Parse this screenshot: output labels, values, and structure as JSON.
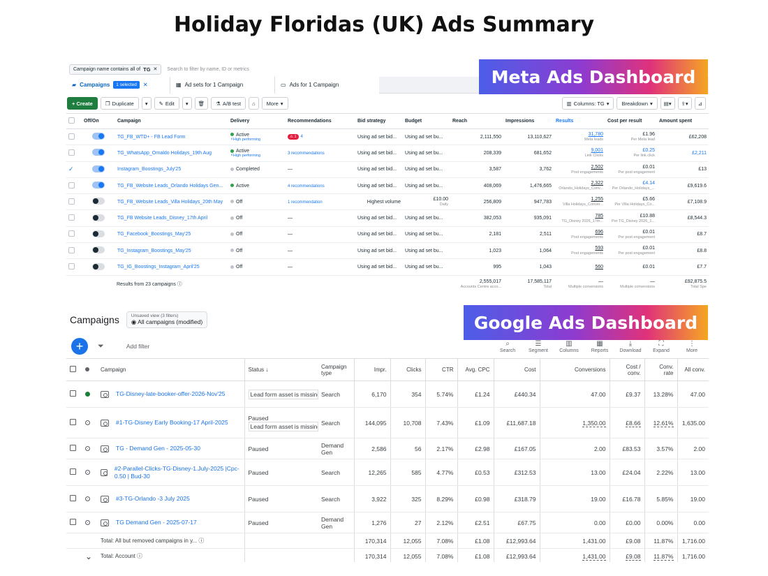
{
  "page_title": "Holiday Floridas (UK) Ads Summary",
  "labels": {
    "meta": "Meta Ads Dashboard",
    "google": "Google Ads Dashboard"
  },
  "meta": {
    "filter": {
      "chip_text": "Campaign name contains all of",
      "chip_value": "TG",
      "hint": "Search to filter by name, ID or metrics"
    },
    "tabs": {
      "campaigns": "Campaigns",
      "selected": "1 selected",
      "adsets": "Ad sets for 1 Campaign",
      "ads": "Ads for 1 Campaign"
    },
    "toolbar": {
      "create": "+ Create",
      "duplicate": "Duplicate",
      "edit": "Edit",
      "abtest": "A/B test",
      "more": "More",
      "columns": "Columns: TG",
      "breakdown": "Breakdown"
    },
    "columns": [
      "Off/On",
      "Campaign",
      "Delivery",
      "Recommendations",
      "Bid strategy",
      "Budget",
      "Reach",
      "Impressions",
      "Results",
      "Cost per result",
      "Amount spent"
    ],
    "rows": [
      {
        "checked": false,
        "on": true,
        "name": "TG_FB_WTD+ - FB Lead Form",
        "delivery": "Active",
        "delivery_sub": "High performing",
        "rec": "4",
        "rec_badge": "1",
        "bid": "Using ad set bid...",
        "budget": "Using ad set bu...",
        "budget_sub": "",
        "reach": "2,111,550",
        "impr": "13,110,627",
        "results": "31,780",
        "results_sub": "Meta leads",
        "cpr": "£1.96",
        "cpr_sub": "Per Meta lead",
        "spent": "£62,208"
      },
      {
        "checked": false,
        "on": true,
        "name": "TG_WhatsApp_Ornaldo Holidays_19th Aug",
        "delivery": "Active",
        "delivery_sub": "High performing",
        "rec": "3 recommendations",
        "rec_badge": "",
        "bid": "Using ad set bid...",
        "budget": "Using ad set bu...",
        "budget_sub": "",
        "reach": "208,339",
        "impr": "681,652",
        "results": "9,001",
        "results_sub": "Link Clicks",
        "cpr": "£0.25",
        "cpr_sub": "Per link click",
        "spent": "£2,211"
      },
      {
        "checked": true,
        "on": true,
        "name": "Instagram_Boostings_July'25",
        "delivery": "Completed",
        "delivery_sub": "",
        "rec": "—",
        "rec_badge": "",
        "bid": "Using ad set bid...",
        "budget": "Using ad set bu...",
        "budget_sub": "",
        "reach": "3,587",
        "impr": "3,762",
        "results": "2,502",
        "results_sub": "Post engagements",
        "cpr": "£0.01",
        "cpr_sub": "Per post engagement",
        "spent": "£13"
      },
      {
        "checked": false,
        "on": true,
        "name": "TG_FB_Website Leads_Orlando Holidays Gen...",
        "delivery": "Active",
        "delivery_sub": "",
        "rec": "4 recommendations",
        "rec_badge": "",
        "bid": "Using ad set bid...",
        "budget": "Using ad set bu...",
        "budget_sub": "",
        "reach": "408,069",
        "impr": "1,476,665",
        "results": "2,322",
        "results_sub": "Orlando_Holidays_Conv...",
        "cpr": "£4.14",
        "cpr_sub": "Per Orlando_Holidays_...",
        "spent": "£9,619.6"
      },
      {
        "checked": false,
        "on": false,
        "name": "TG_FB_Website Leads_Villa Holidays_20th May",
        "delivery": "Off",
        "delivery_sub": "",
        "rec": "1 recommendation",
        "rec_badge": "",
        "bid": "Highest volume",
        "budget": "£10.00",
        "budget_sub": "Daily",
        "reach": "256,809",
        "impr": "947,783",
        "results": "1,255",
        "results_sub": "Villa Holidays_Conver...",
        "cpr": "£5.66",
        "cpr_sub": "Per Villa Holidays_Co...",
        "spent": "£7,108.9"
      },
      {
        "checked": false,
        "on": false,
        "name": "TG_FB Website Leads_Disney_17th April",
        "delivery": "Off",
        "delivery_sub": "",
        "rec": "—",
        "rec_badge": "",
        "bid": "Using ad set bid...",
        "budget": "Using ad set bu...",
        "budget_sub": "",
        "reach": "382,053",
        "impr": "935,091",
        "results": "785",
        "results_sub": "TG_Disney 2026_17th...",
        "cpr": "£10.88",
        "cpr_sub": "Per TG_Disney 2026_1...",
        "spent": "£8,544.3"
      },
      {
        "checked": false,
        "on": false,
        "name": "TG_Facebook_Boostings_May'25",
        "delivery": "Off",
        "delivery_sub": "",
        "rec": "—",
        "rec_badge": "",
        "bid": "Using ad set bid...",
        "budget": "Using ad set bu...",
        "budget_sub": "",
        "reach": "2,181",
        "impr": "2,511",
        "results": "696",
        "results_sub": "Post engagements",
        "cpr": "£0.01",
        "cpr_sub": "Per post engagement",
        "spent": "£8.7"
      },
      {
        "checked": false,
        "on": false,
        "name": "TG_Instagram_Boostings_May'25",
        "delivery": "Off",
        "delivery_sub": "",
        "rec": "—",
        "rec_badge": "",
        "bid": "Using ad set bid...",
        "budget": "Using ad set bu...",
        "budget_sub": "",
        "reach": "1,023",
        "impr": "1,064",
        "results": "593",
        "results_sub": "Post engagements",
        "cpr": "£0.01",
        "cpr_sub": "Per post engagement",
        "spent": "£8.8"
      },
      {
        "checked": false,
        "on": false,
        "name": "TG_IG_Boostings_Instagram_April'25",
        "delivery": "Off",
        "delivery_sub": "",
        "rec": "—",
        "rec_badge": "",
        "bid": "Using ad set bid...",
        "budget": "Using ad set bu...",
        "budget_sub": "",
        "reach": "995",
        "impr": "1,043",
        "results": "560",
        "results_sub": "",
        "cpr": "£0.01",
        "cpr_sub": "",
        "spent": "£7.7"
      }
    ],
    "footer": {
      "label": "Results from 23 campaigns",
      "reach": "2,555,017",
      "reach_sub": "Accounts Centre acco...",
      "impr": "17,585,117",
      "impr_sub": "Total",
      "results": "—",
      "results_sub": "Multiple conversions",
      "cpr": "—",
      "cpr_sub": "Multiple conversions",
      "spent": "£92,875.5",
      "spent_sub": "Total Spe"
    }
  },
  "google": {
    "title": "Campaigns",
    "view": {
      "line1": "Unsaved view (3 filters)",
      "line2": "All campaigns (modified)"
    },
    "add_filter": "Add filter",
    "tools": [
      "Search",
      "Segment",
      "Columns",
      "Reports",
      "Download",
      "Expand",
      "More"
    ],
    "columns": [
      "Campaign",
      "Status",
      "Campaign type",
      "Impr.",
      "Clicks",
      "CTR",
      "Avg. CPC",
      "Cost",
      "Conversions",
      "Cost / conv.",
      "Conv. rate",
      "All conv."
    ],
    "rows": [
      {
        "status_dot": "enabled",
        "name": "TG-Disney-late-booker-offer-2026-Nov'25",
        "status1": "",
        "status2": "Lead form asset is missing",
        "type": "Search",
        "impr": "6,170",
        "clicks": "354",
        "ctr": "5.74%",
        "cpc": "£1.24",
        "cost": "£440.34",
        "conv": "47.00",
        "cpconv": "£9.37",
        "rate": "13.28%",
        "all": "47.00"
      },
      {
        "status_dot": "paused",
        "name": "#1-TG-Disney Early Booking-17 April-2025",
        "status1": "Paused",
        "status2": "Lead form asset is missing",
        "type": "Search",
        "impr": "144,095",
        "clicks": "10,708",
        "ctr": "7.43%",
        "cpc": "£1.09",
        "cost": "£11,687.18",
        "conv": "1,350.00",
        "cpconv": "£8.66",
        "rate": "12.61%",
        "all": "1,635.00"
      },
      {
        "status_dot": "paused",
        "name": "TG - Demand Gen - 2025-05-30",
        "status1": "Paused",
        "status2": "",
        "type": "Demand Gen",
        "impr": "2,586",
        "clicks": "56",
        "ctr": "2.17%",
        "cpc": "£2.98",
        "cost": "£167.05",
        "conv": "2.00",
        "cpconv": "£83.53",
        "rate": "3.57%",
        "all": "2.00"
      },
      {
        "status_dot": "paused",
        "name": "#2-Parallel-Clicks-TG-Disney-1.July-2025 |Cpc-0.50 | Bud-30",
        "status1": "Paused",
        "status2": "",
        "type": "Search",
        "impr": "12,265",
        "clicks": "585",
        "ctr": "4.77%",
        "cpc": "£0.53",
        "cost": "£312.53",
        "conv": "13.00",
        "cpconv": "£24.04",
        "rate": "2.22%",
        "all": "13.00"
      },
      {
        "status_dot": "paused",
        "name": "#3-TG-Orlando -3 July 2025",
        "status1": "Paused",
        "status2": "",
        "type": "Search",
        "impr": "3,922",
        "clicks": "325",
        "ctr": "8.29%",
        "cpc": "£0.98",
        "cost": "£318.79",
        "conv": "19.00",
        "cpconv": "£16.78",
        "rate": "5.85%",
        "all": "19.00"
      },
      {
        "status_dot": "paused",
        "name": "TG Demand Gen - 2025-07-17",
        "status1": "Paused",
        "status2": "",
        "type": "Demand Gen",
        "impr": "1,276",
        "clicks": "27",
        "ctr": "2.12%",
        "cpc": "£2.51",
        "cost": "£67.75",
        "conv": "0.00",
        "cpconv": "£0.00",
        "rate": "0.00%",
        "all": "0.00"
      }
    ],
    "totals": [
      {
        "label": "Total: All but removed campaigns in y...",
        "impr": "170,314",
        "clicks": "12,055",
        "ctr": "7.08%",
        "cpc": "£1.08",
        "cost": "£12,993.64",
        "conv": "1,431.00",
        "cpconv": "£9.08",
        "rate": "11.87%",
        "all": "1,716.00"
      },
      {
        "label": "Total: Account",
        "impr": "170,314",
        "clicks": "12,055",
        "ctr": "7.08%",
        "cpc": "£1.08",
        "cost": "£12,993.64",
        "conv": "1,431.00",
        "cpconv": "£9.08",
        "rate": "11.87%",
        "all": "1,716.00"
      }
    ]
  }
}
